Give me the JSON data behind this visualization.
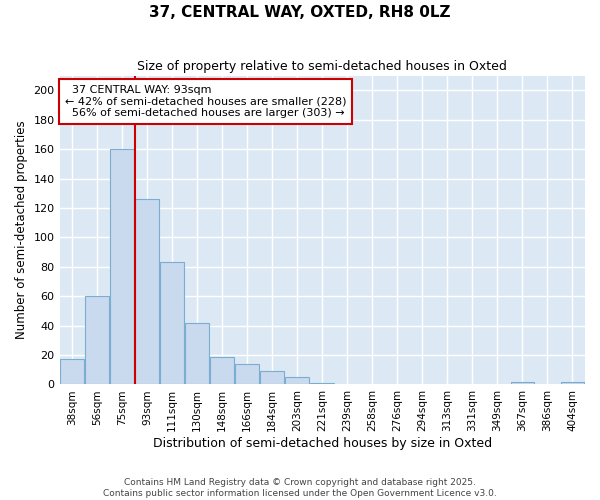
{
  "title": "37, CENTRAL WAY, OXTED, RH8 0LZ",
  "subtitle": "Size of property relative to semi-detached houses in Oxted",
  "xlabel": "Distribution of semi-detached houses by size in Oxted",
  "ylabel": "Number of semi-detached properties",
  "categories": [
    "38sqm",
    "56sqm",
    "75sqm",
    "93sqm",
    "111sqm",
    "130sqm",
    "148sqm",
    "166sqm",
    "184sqm",
    "203sqm",
    "221sqm",
    "239sqm",
    "258sqm",
    "276sqm",
    "294sqm",
    "313sqm",
    "331sqm",
    "349sqm",
    "367sqm",
    "386sqm",
    "404sqm"
  ],
  "values": [
    17,
    60,
    160,
    126,
    83,
    42,
    19,
    14,
    9,
    5,
    1,
    0,
    0,
    0,
    0,
    0,
    0,
    0,
    2,
    0,
    2
  ],
  "bar_color": "#c9d9ee",
  "bar_edge_color": "#7aadcf",
  "property_index": 3,
  "property_label": "37 CENTRAL WAY: 93sqm",
  "smaller_pct": 42,
  "smaller_n": 228,
  "larger_pct": 56,
  "larger_n": 303,
  "vline_color": "#cc0000",
  "annotation_box_color": "#cc0000",
  "ylim": [
    0,
    210
  ],
  "yticks": [
    0,
    20,
    40,
    60,
    80,
    100,
    120,
    140,
    160,
    180,
    200
  ],
  "plot_bg_color": "#dce9f5",
  "fig_bg_color": "#ffffff",
  "grid_color": "#ffffff",
  "footer_line1": "Contains HM Land Registry data © Crown copyright and database right 2025.",
  "footer_line2": "Contains public sector information licensed under the Open Government Licence v3.0."
}
